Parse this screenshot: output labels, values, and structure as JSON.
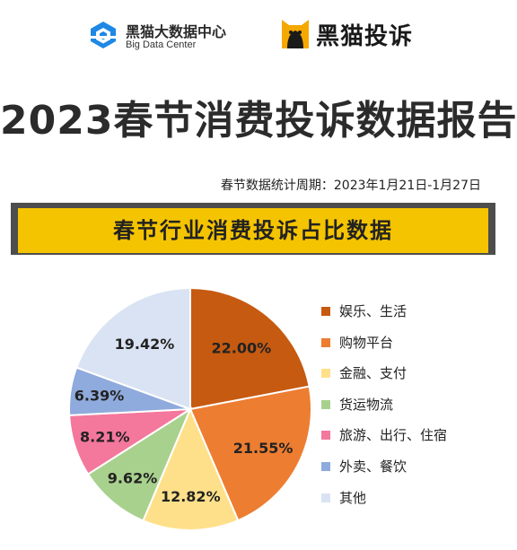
{
  "header": {
    "logo_left_cn": "黑猫大数据中心",
    "logo_left_en": "Big Data Center",
    "logo_right": "黑猫投诉"
  },
  "title": "2023春节消费投诉数据报告",
  "period": "春节数据统计周期：2023年1月21日-1月27日",
  "chart_data": {
    "type": "pie",
    "title": "春节行业消费投诉占比数据",
    "legend_position": "right",
    "categories": [
      "娱乐、生活",
      "购物平台",
      "金融、支付",
      "货运物流",
      "旅游、出行、住宿",
      "外卖、餐饮",
      "其他"
    ],
    "values": [
      22.0,
      21.55,
      12.82,
      9.62,
      8.21,
      6.39,
      19.42
    ],
    "labels": [
      "22.00%",
      "21.55%",
      "12.82%",
      "9.62%",
      "8.21%",
      "6.39%",
      "19.42%"
    ],
    "colors": [
      "#c65a11",
      "#ed7d31",
      "#ffe08a",
      "#a9d18e",
      "#f4779c",
      "#8faadc",
      "#dae3f3"
    ]
  }
}
